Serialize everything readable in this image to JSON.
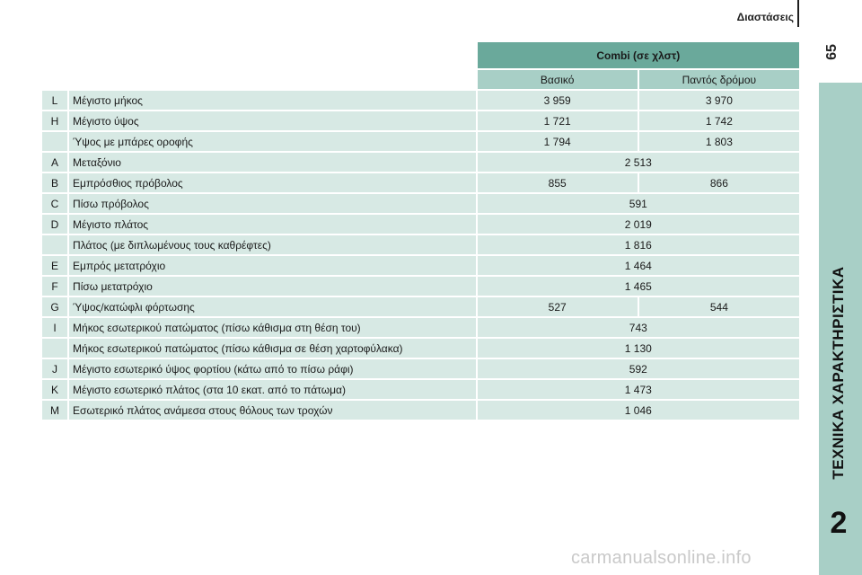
{
  "header": {
    "title": "Διαστάσεις",
    "page_number": "65"
  },
  "side_tab": {
    "title": "ΤΕΧΝΙΚΑ ΧΑΡΑΚΤΗΡΙΣΤΙΚΑ",
    "chapter": "2"
  },
  "table": {
    "group_header": "Combi (σε χλστ)",
    "sub_headers": [
      "Βασικό",
      "Παντός δρόμου"
    ],
    "rows": [
      {
        "code": "L",
        "label": "Μέγιστο μήκος",
        "v1": "3 959",
        "v2": "3 970"
      },
      {
        "code": "H",
        "label": "Μέγιστο ύψος",
        "v1": "1 721",
        "v2": "1 742"
      },
      {
        "code": "",
        "label": "Ύψος με μπάρες οροφής",
        "v1": "1 794",
        "v2": "1 803"
      },
      {
        "code": "A",
        "label": "Μεταξόνιο",
        "v": "2 513"
      },
      {
        "code": "B",
        "label": "Εμπρόσθιος πρόβολος",
        "v1": "855",
        "v2": "866"
      },
      {
        "code": "C",
        "label": "Πίσω πρόβολος",
        "v": "591"
      },
      {
        "code": "D",
        "label": "Μέγιστο πλάτος",
        "v": "2 019"
      },
      {
        "code": "",
        "label": "Πλάτος (με διπλωμένους τους καθρέφτες)",
        "v": "1 816"
      },
      {
        "code": "E",
        "label": "Εμπρός μετατρόχιο",
        "v": "1 464"
      },
      {
        "code": "F",
        "label": "Πίσω μετατρόχιο",
        "v": "1 465"
      },
      {
        "code": "G",
        "label": "Ύψος/κατώφλι φόρτωσης",
        "v1": "527",
        "v2": "544"
      },
      {
        "code": "I",
        "label": "Μήκος εσωτερικού πατώματος (πίσω κάθισμα στη θέση του)",
        "v": "743"
      },
      {
        "code": "",
        "label": "Μήκος εσωτερικού πατώματος (πίσω κάθισμα σε θέση χαρτοφύλακα)",
        "v": "1 130"
      },
      {
        "code": "J",
        "label": "Μέγιστο εσωτερικό ύψος φορτίου (κάτω από το πίσω ράφι)",
        "v": "592"
      },
      {
        "code": "K",
        "label": "Μέγιστο εσωτερικό πλάτος (στα 10 εκατ. από το πάτωμα)",
        "v": "1 473"
      },
      {
        "code": "M",
        "label": "Εσωτερικό πλάτος ανάμεσα στους θόλους των τροχών",
        "v": "1 046"
      }
    ]
  },
  "watermark": "carmanualsonline.info"
}
